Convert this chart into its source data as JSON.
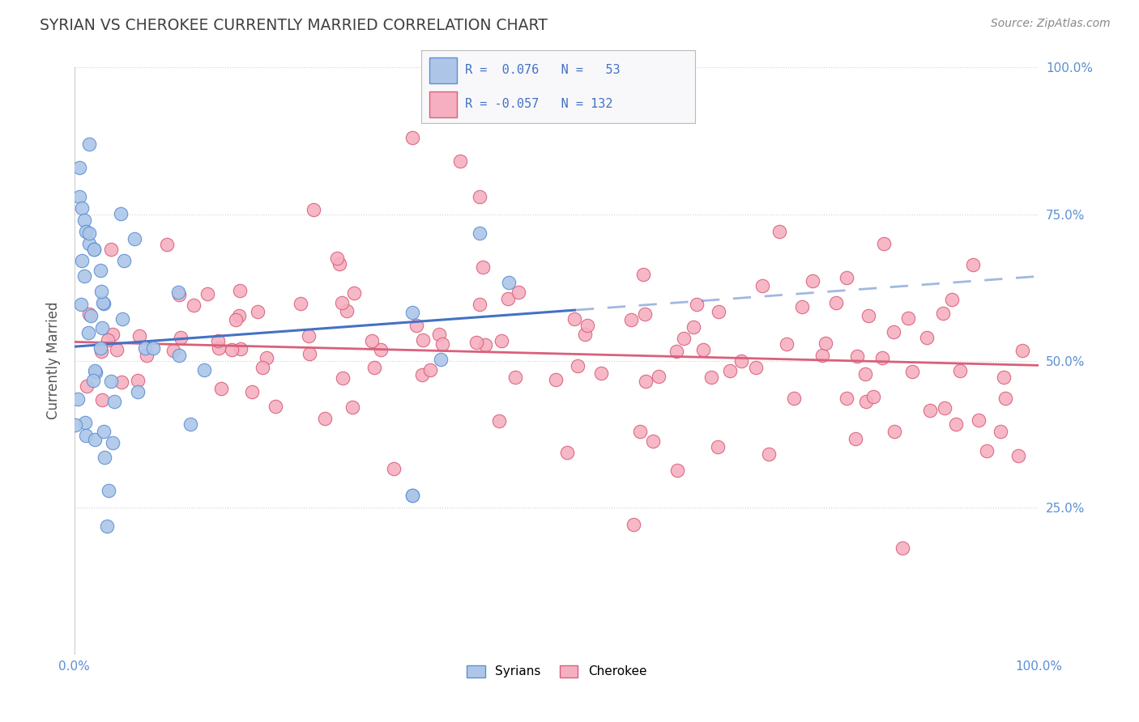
{
  "title": "SYRIAN VS CHEROKEE CURRENTLY MARRIED CORRELATION CHART",
  "source": "Source: ZipAtlas.com",
  "ylabel": "Currently Married",
  "xlim": [
    0.0,
    1.0
  ],
  "ylim": [
    0.0,
    1.0
  ],
  "xticks": [
    0.0,
    0.25,
    0.5,
    0.75,
    1.0
  ],
  "yticks": [
    0.0,
    0.25,
    0.5,
    0.75,
    1.0
  ],
  "xtick_labels": [
    "0.0%",
    "",
    "",
    "",
    "100.0%"
  ],
  "ytick_labels": [
    "",
    "",
    "",
    "",
    ""
  ],
  "right_ytick_labels": [
    "",
    "25.0%",
    "50.0%",
    "75.0%",
    "100.0%"
  ],
  "syrian_R": 0.076,
  "syrian_N": 53,
  "cherokee_R": -0.057,
  "cherokee_N": 132,
  "syrian_color": "#adc6e8",
  "cherokee_color": "#f5afc0",
  "syrian_edge_color": "#5b8fd4",
  "cherokee_edge_color": "#d9607a",
  "syrian_line_color": "#4472c4",
  "cherokee_line_color": "#d9607a",
  "background_color": "#ffffff",
  "grid_color": "#d0d0d0",
  "title_color": "#404040",
  "source_color": "#888888",
  "tick_color": "#5b8fd4"
}
